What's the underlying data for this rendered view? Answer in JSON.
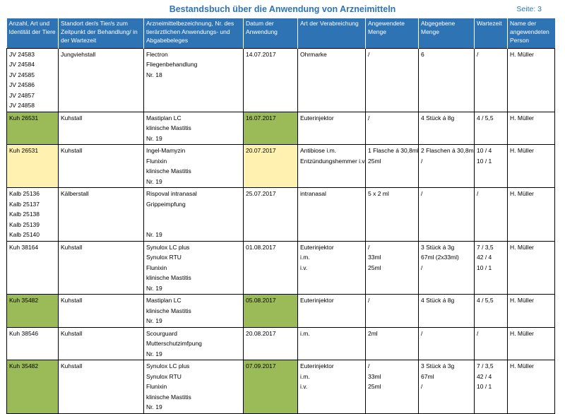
{
  "header": {
    "title": "Bestandsbuch über die Anwendung von Arzneimitteln",
    "page": "Seite: 3"
  },
  "columns": [
    "Anzahl, Art und Identität der Tiere",
    "Standort der/s Tier/s zum Zeitpunkt der Behandlung/ in der Wartezeit",
    "Arzneimittelbezeichnung, Nr. des tierärztlichen Anwendungs- und Abgabebeleges",
    "Datum der Anwendung",
    "Art der Verabreichung",
    "Angewendete Menge",
    "Abgegebene Menge",
    "Wartezeit",
    "Name der angewendeten Person"
  ],
  "highlight_colors": {
    "green": "#9BBB59",
    "yellow": "#FFF2B0",
    "header": "#2E74B5"
  },
  "rows": [
    {
      "cells": [
        [
          "JV 24583",
          "JV 24584",
          "JV 24585",
          "JV 24586",
          "JV 24857",
          "JV 24858"
        ],
        [
          "Jungviehstall"
        ],
        [
          "Flectron",
          "Fliegenbehandlung",
          "Nr. 18"
        ],
        [
          "14.07.2017"
        ],
        [
          "Ohrmarke"
        ],
        [
          "/"
        ],
        [
          "6"
        ],
        [
          "/"
        ],
        [
          "H. Müller"
        ]
      ],
      "highlight": ""
    },
    {
      "cells": [
        [
          "Kuh 26531"
        ],
        [
          "Kuhstall"
        ],
        [
          "Mastiplan LC",
          "klinische Mastitis",
          "Nr. 19"
        ],
        [
          "16.07.2017"
        ],
        [
          "Euterinjektor"
        ],
        [
          "/"
        ],
        [
          "4 Stück á 8g"
        ],
        [
          "4 / 5,5"
        ],
        [
          "H. Müller"
        ]
      ],
      "highlight": "green"
    },
    {
      "cells": [
        [
          "Kuh 26531"
        ],
        [
          "Kuhstall"
        ],
        [
          "Ingel-Mamyzin",
          "Flunixin",
          "klinische Mastitis",
          "Nr. 19"
        ],
        [
          "20.07.2017"
        ],
        [
          "Antibiose i.m.",
          "Entzündungshemmer i.v."
        ],
        [
          "1 Flasche á 30,8ml",
          "25ml"
        ],
        [
          "2 Flaschen á 30,8ml",
          "/"
        ],
        [
          "10 / 4",
          "10 / 1"
        ],
        [
          "H. Müller"
        ]
      ],
      "highlight": "yellow"
    },
    {
      "cells": [
        [
          "Kalb 25136",
          "Kalb 25137",
          "Kalb 25138",
          "Kalb 25139",
          "Kalb 25140"
        ],
        [
          "Kälberstall"
        ],
        [
          "Rispoval intranasal",
          "Grippeimpfung",
          "",
          "",
          "Nr. 19"
        ],
        [
          "25.07.2017"
        ],
        [
          "intranasal"
        ],
        [
          "5 x 2 ml"
        ],
        [
          "/"
        ],
        [
          "/"
        ],
        [
          "H. Müller"
        ]
      ],
      "highlight": ""
    },
    {
      "cells": [
        [
          "Kuh 38164"
        ],
        [
          "Kuhstall"
        ],
        [
          "Synulox LC plus",
          "Synulox RTU",
          "Flunixin",
          "klinische Mastitis",
          "Nr. 19"
        ],
        [
          "01.08.2017"
        ],
        [
          "Euterinjektor",
          "i.m.",
          "i.v."
        ],
        [
          "/",
          "33ml",
          "25ml"
        ],
        [
          "3 Stück á 3g",
          "67ml (2x33ml)",
          "/"
        ],
        [
          "7 / 3,5",
          "42 / 4",
          "10 / 1"
        ],
        [
          "H. Müller"
        ]
      ],
      "highlight": ""
    },
    {
      "cells": [
        [
          "Kuh 35482"
        ],
        [
          "Kuhstall"
        ],
        [
          "Mastiplan LC",
          "klinische Mastitis",
          "Nr. 19"
        ],
        [
          "05.08.2017"
        ],
        [
          "Euterinjektor"
        ],
        [
          "/"
        ],
        [
          "4 Stück á 8g"
        ],
        [
          "4 / 5,5"
        ],
        [
          "H. Müller"
        ]
      ],
      "highlight": "green"
    },
    {
      "cells": [
        [
          "Kuh 38546"
        ],
        [
          "Kuhstall"
        ],
        [
          "Scourguard",
          "Mutterschutzimfpung",
          "Nr. 19"
        ],
        [
          "20.08.2017"
        ],
        [
          "i.m."
        ],
        [
          "2ml"
        ],
        [
          "/"
        ],
        [
          "/"
        ],
        [
          "H. Müller"
        ]
      ],
      "highlight": ""
    },
    {
      "cells": [
        [
          "Kuh 35482"
        ],
        [
          "Kuhstall"
        ],
        [
          "Synulox LC plus",
          "Synulox RTU",
          "Flunixin",
          "klinische Mastitis",
          "Nr. 19"
        ],
        [
          "07.09.2017"
        ],
        [
          "Euterinjektor",
          "i.m.",
          "i.v."
        ],
        [
          "/",
          "33ml",
          "25ml"
        ],
        [
          "3 Stück á 3g",
          "67ml",
          "/"
        ],
        [
          "7 / 3,5",
          "42 / 4",
          "10 / 1"
        ],
        [
          "H. Müller"
        ]
      ],
      "highlight": "green"
    }
  ]
}
